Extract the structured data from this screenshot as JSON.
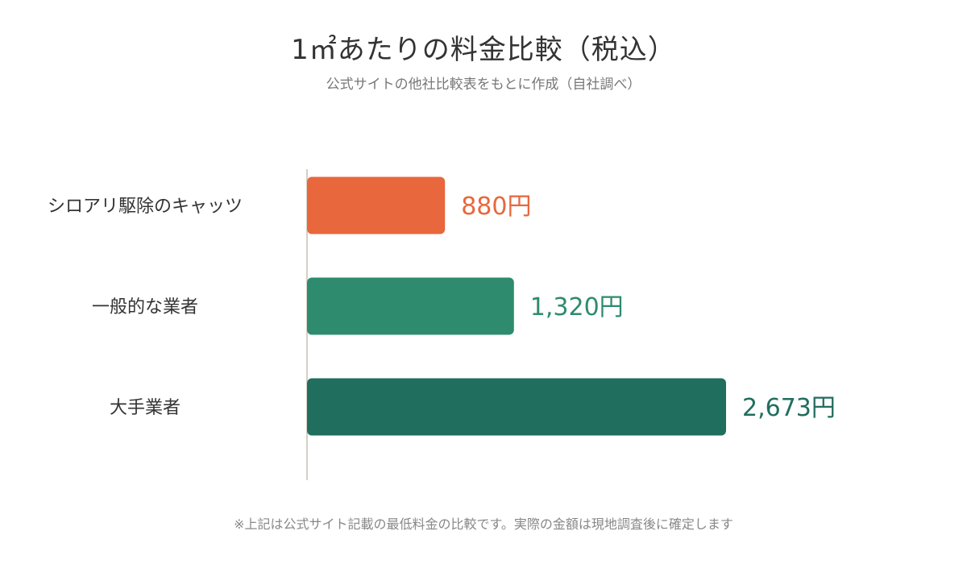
{
  "chart_data": {
    "type": "bar",
    "orientation": "horizontal",
    "title": "1㎡あたりの料金比較（税込）",
    "subtitle": "公式サイトの他社比較表をもとに作成（自社調べ）",
    "categories": [
      "シロアリ駆除のキャッツ",
      "一般的な業者",
      "大手業者"
    ],
    "values": [
      880,
      1320,
      2673
    ],
    "value_labels": [
      "880円",
      "1,320円",
      "2,673円"
    ],
    "colors": [
      "#E8673C",
      "#2E8B6E",
      "#206E5E"
    ],
    "xlim": [
      0,
      2673
    ],
    "grid": false,
    "legend": "none",
    "footnote": "※上記は公式サイト記載の最低料金の比較です。実際の金額は現地調査後に確定します"
  }
}
